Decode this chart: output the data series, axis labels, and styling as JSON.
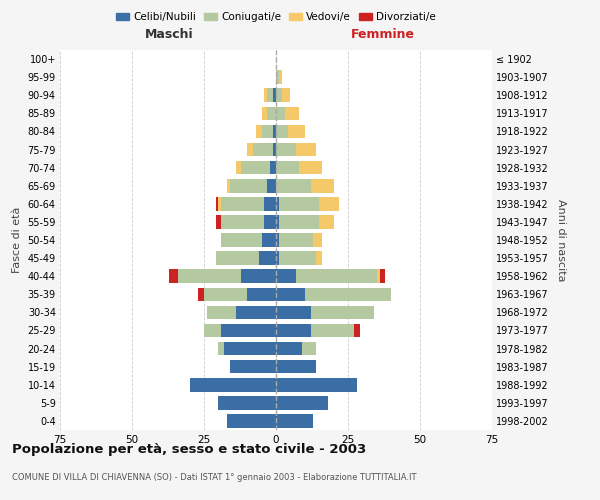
{
  "age_groups": [
    "0-4",
    "5-9",
    "10-14",
    "15-19",
    "20-24",
    "25-29",
    "30-34",
    "35-39",
    "40-44",
    "45-49",
    "50-54",
    "55-59",
    "60-64",
    "65-69",
    "70-74",
    "75-79",
    "80-84",
    "85-89",
    "90-94",
    "95-99",
    "100+"
  ],
  "birth_years": [
    "1998-2002",
    "1993-1997",
    "1988-1992",
    "1983-1987",
    "1978-1982",
    "1973-1977",
    "1968-1972",
    "1963-1967",
    "1958-1962",
    "1953-1957",
    "1948-1952",
    "1943-1947",
    "1938-1942",
    "1933-1937",
    "1928-1932",
    "1923-1927",
    "1918-1922",
    "1913-1917",
    "1908-1912",
    "1903-1907",
    "≤ 1902"
  ],
  "male": {
    "celibi": [
      17,
      20,
      30,
      16,
      18,
      19,
      14,
      10,
      12,
      6,
      5,
      4,
      4,
      3,
      2,
      1,
      1,
      0,
      1,
      0,
      0
    ],
    "coniugati": [
      0,
      0,
      0,
      0,
      2,
      6,
      10,
      15,
      22,
      15,
      14,
      15,
      15,
      13,
      10,
      7,
      4,
      3,
      2,
      0,
      0
    ],
    "vedovi": [
      0,
      0,
      0,
      0,
      0,
      0,
      0,
      0,
      0,
      0,
      0,
      0,
      1,
      1,
      2,
      2,
      2,
      2,
      1,
      0,
      0
    ],
    "divorziati": [
      0,
      0,
      0,
      0,
      0,
      0,
      0,
      2,
      3,
      0,
      0,
      2,
      1,
      0,
      0,
      0,
      0,
      0,
      0,
      0,
      0
    ]
  },
  "female": {
    "nubili": [
      13,
      18,
      28,
      14,
      9,
      12,
      12,
      10,
      7,
      1,
      1,
      1,
      1,
      0,
      0,
      0,
      0,
      0,
      0,
      0,
      0
    ],
    "coniugate": [
      0,
      0,
      0,
      0,
      5,
      15,
      22,
      30,
      28,
      13,
      12,
      14,
      14,
      12,
      8,
      7,
      4,
      3,
      2,
      1,
      0
    ],
    "vedove": [
      0,
      0,
      0,
      0,
      0,
      0,
      0,
      0,
      1,
      2,
      3,
      5,
      7,
      8,
      8,
      7,
      6,
      5,
      3,
      1,
      0
    ],
    "divorziate": [
      0,
      0,
      0,
      0,
      0,
      2,
      0,
      0,
      2,
      0,
      0,
      0,
      0,
      0,
      0,
      0,
      0,
      0,
      0,
      0,
      0
    ]
  },
  "colors": {
    "celibi": "#3a6ea5",
    "coniugati": "#b5c9a0",
    "vedovi": "#f5c96a",
    "divorziati": "#cc2222"
  },
  "title": "Popolazione per età, sesso e stato civile - 2003",
  "subtitle": "COMUNE DI VILLA DI CHIAVENNA (SO) - Dati ISTAT 1° gennaio 2003 - Elaborazione TUTTITALIA.IT",
  "xlabel_left": "Maschi",
  "xlabel_right": "Femmine",
  "ylabel_left": "Fasce di età",
  "ylabel_right": "Anni di nascita",
  "xlim": 75,
  "legend_labels": [
    "Celibi/Nubili",
    "Coniugati/e",
    "Vedovi/e",
    "Divorziati/e"
  ],
  "background_color": "#f5f5f5",
  "plot_background": "#ffffff"
}
